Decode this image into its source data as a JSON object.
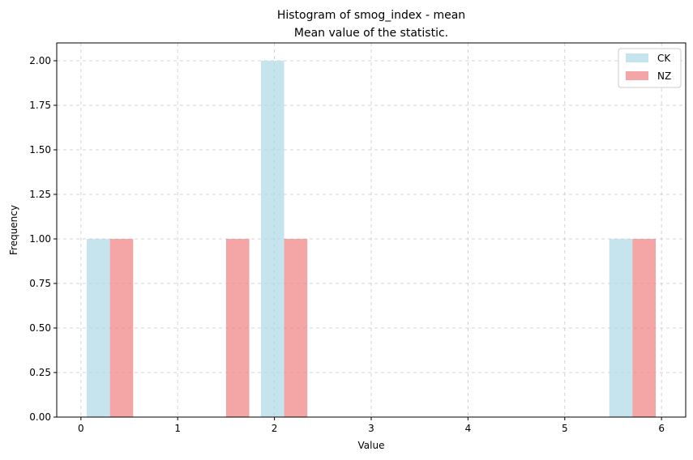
{
  "chart_data": {
    "type": "bar",
    "title": "Histogram of smog_index - mean",
    "subtitle": "Mean value of the statistic.",
    "xlabel": "Value",
    "ylabel": "Frequency",
    "xlim": [
      -0.25,
      6.25
    ],
    "ylim": [
      0,
      2.1
    ],
    "xticks": [
      "0",
      "1",
      "2",
      "3",
      "4",
      "5",
      "6"
    ],
    "xtick_values": [
      0,
      1,
      2,
      3,
      4,
      5,
      6
    ],
    "yticks": [
      "0.00",
      "0.25",
      "0.50",
      "0.75",
      "1.00",
      "1.25",
      "1.50",
      "1.75",
      "2.00"
    ],
    "ytick_values": [
      0,
      0.25,
      0.5,
      0.75,
      1.0,
      1.25,
      1.5,
      1.75,
      2.0
    ],
    "grid": true,
    "legend_position": "top-right",
    "series": [
      {
        "name": "CK",
        "color": "#add8e6",
        "bins": [
          {
            "x0": 0.06,
            "x1": 0.3,
            "value": 1
          },
          {
            "x0": 1.86,
            "x1": 2.1,
            "value": 2
          },
          {
            "x0": 5.46,
            "x1": 5.7,
            "value": 1
          }
        ]
      },
      {
        "name": "NZ",
        "color": "#f08080",
        "bins": [
          {
            "x0": 0.3,
            "x1": 0.54,
            "value": 1
          },
          {
            "x0": 1.5,
            "x1": 1.74,
            "value": 1
          },
          {
            "x0": 2.1,
            "x1": 2.34,
            "value": 1
          },
          {
            "x0": 5.7,
            "x1": 5.94,
            "value": 1
          }
        ]
      }
    ]
  }
}
